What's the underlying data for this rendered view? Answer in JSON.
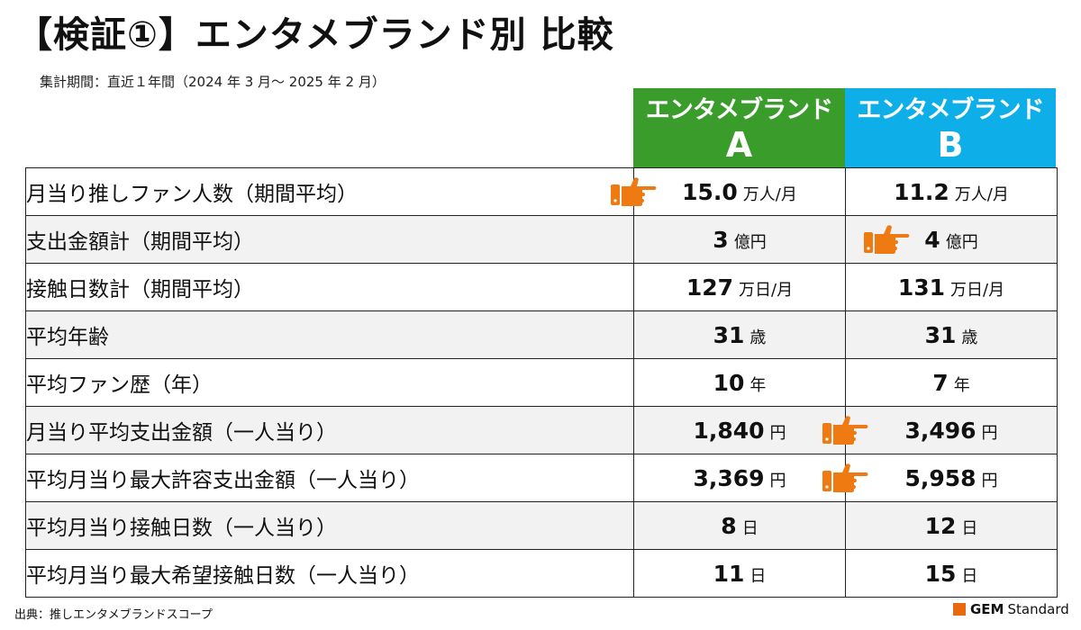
{
  "title": "【検証①】エンタメブランド別 比較",
  "subtitle": "集計期間：直近１年間（2024 年 3 月～ 2025 年 2 月）",
  "brands": [
    {
      "line1": "エンタメブランド",
      "line2": "A",
      "color": "#3a9d2b"
    },
    {
      "line1": "エンタメブランド",
      "line2": "B",
      "color": "#0eaee9"
    }
  ],
  "rows": [
    {
      "label": "月当り推しファン人数（期間平均）",
      "a": {
        "num": "15.0",
        "unit": "万人/月"
      },
      "b": {
        "num": "11.2",
        "unit": "万人/月"
      }
    },
    {
      "label": "支出金額計（期間平均）",
      "a": {
        "num": "3",
        "unit": "億円"
      },
      "b": {
        "num": "4",
        "unit": "億円"
      }
    },
    {
      "label": "接触日数計（期間平均）",
      "a": {
        "num": "127",
        "unit": "万日/月"
      },
      "b": {
        "num": "131",
        "unit": "万日/月"
      }
    },
    {
      "label": "平均年齢",
      "a": {
        "num": "31",
        "unit": "歳"
      },
      "b": {
        "num": "31",
        "unit": "歳"
      }
    },
    {
      "label": "平均ファン歴（年）",
      "a": {
        "num": "10",
        "unit": "年"
      },
      "b": {
        "num": "7",
        "unit": "年"
      }
    },
    {
      "label": "月当り平均支出金額（一人当り）",
      "a": {
        "num": "1,840",
        "unit": "円"
      },
      "b": {
        "num": "3,496",
        "unit": "円"
      }
    },
    {
      "label": "平均月当り最大許容支出金額（一人当り）",
      "a": {
        "num": "3,369",
        "unit": "円"
      },
      "b": {
        "num": "5,958",
        "unit": "円"
      }
    },
    {
      "label": "平均月当り接触日数（一人当り）",
      "a": {
        "num": "8",
        "unit": "日"
      },
      "b": {
        "num": "12",
        "unit": "日"
      }
    },
    {
      "label": "平均月当り最大希望接触日数（一人当り）",
      "a": {
        "num": "11",
        "unit": "日"
      },
      "b": {
        "num": "15",
        "unit": "日"
      }
    }
  ],
  "winners": [
    "a",
    "b",
    "",
    "",
    "",
    "b",
    "b",
    "",
    ""
  ],
  "footer": "出典：推しエンタメブランドスコープ",
  "logo": {
    "gem": "GEM",
    "text": "Standard",
    "color": "#e8690e"
  },
  "icons": {
    "winner": "pointing-hand-icon",
    "logo": "gem-square-icon"
  },
  "accent_color": "#f07a12"
}
